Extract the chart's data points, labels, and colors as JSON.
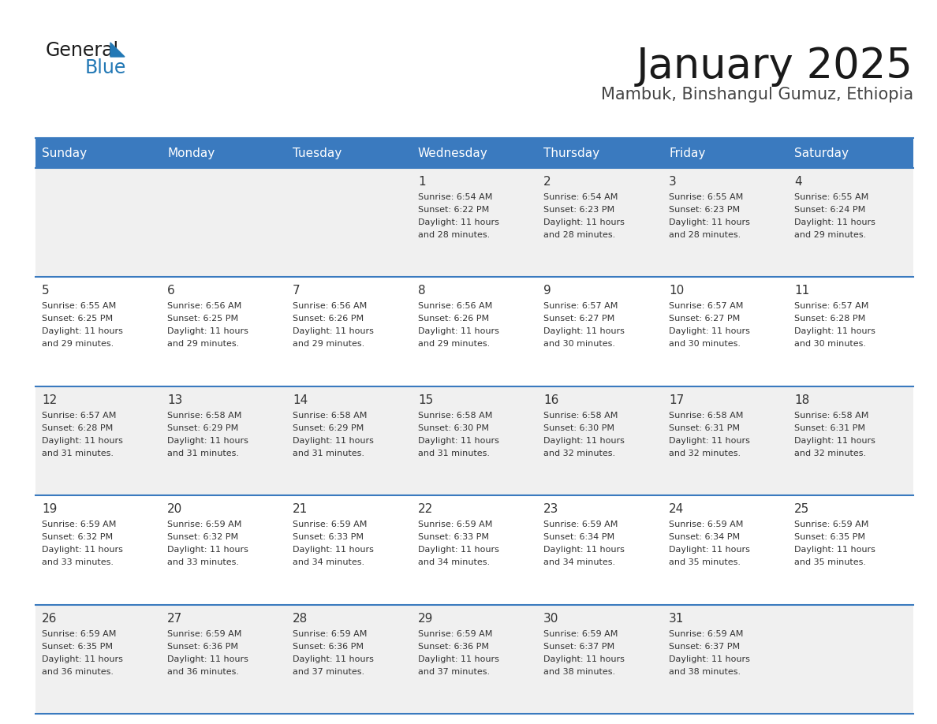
{
  "title": "January 2025",
  "subtitle": "Mambuk, Binshangul Gumuz, Ethiopia",
  "header_bg_color": "#3a7abf",
  "header_text_color": "#ffffff",
  "cell_bg_odd": "#f0f0f0",
  "cell_bg_even": "#ffffff",
  "divider_color": "#3a7abf",
  "text_color": "#333333",
  "day_headers": [
    "Sunday",
    "Monday",
    "Tuesday",
    "Wednesday",
    "Thursday",
    "Friday",
    "Saturday"
  ],
  "weeks": [
    [
      {
        "day": "",
        "sunrise": "",
        "sunset": "",
        "daylight": ""
      },
      {
        "day": "",
        "sunrise": "",
        "sunset": "",
        "daylight": ""
      },
      {
        "day": "",
        "sunrise": "",
        "sunset": "",
        "daylight": ""
      },
      {
        "day": "1",
        "sunrise": "Sunrise: 6:54 AM",
        "sunset": "Sunset: 6:22 PM",
        "daylight": "Daylight: 11 hours\nand 28 minutes."
      },
      {
        "day": "2",
        "sunrise": "Sunrise: 6:54 AM",
        "sunset": "Sunset: 6:23 PM",
        "daylight": "Daylight: 11 hours\nand 28 minutes."
      },
      {
        "day": "3",
        "sunrise": "Sunrise: 6:55 AM",
        "sunset": "Sunset: 6:23 PM",
        "daylight": "Daylight: 11 hours\nand 28 minutes."
      },
      {
        "day": "4",
        "sunrise": "Sunrise: 6:55 AM",
        "sunset": "Sunset: 6:24 PM",
        "daylight": "Daylight: 11 hours\nand 29 minutes."
      }
    ],
    [
      {
        "day": "5",
        "sunrise": "Sunrise: 6:55 AM",
        "sunset": "Sunset: 6:25 PM",
        "daylight": "Daylight: 11 hours\nand 29 minutes."
      },
      {
        "day": "6",
        "sunrise": "Sunrise: 6:56 AM",
        "sunset": "Sunset: 6:25 PM",
        "daylight": "Daylight: 11 hours\nand 29 minutes."
      },
      {
        "day": "7",
        "sunrise": "Sunrise: 6:56 AM",
        "sunset": "Sunset: 6:26 PM",
        "daylight": "Daylight: 11 hours\nand 29 minutes."
      },
      {
        "day": "8",
        "sunrise": "Sunrise: 6:56 AM",
        "sunset": "Sunset: 6:26 PM",
        "daylight": "Daylight: 11 hours\nand 29 minutes."
      },
      {
        "day": "9",
        "sunrise": "Sunrise: 6:57 AM",
        "sunset": "Sunset: 6:27 PM",
        "daylight": "Daylight: 11 hours\nand 30 minutes."
      },
      {
        "day": "10",
        "sunrise": "Sunrise: 6:57 AM",
        "sunset": "Sunset: 6:27 PM",
        "daylight": "Daylight: 11 hours\nand 30 minutes."
      },
      {
        "day": "11",
        "sunrise": "Sunrise: 6:57 AM",
        "sunset": "Sunset: 6:28 PM",
        "daylight": "Daylight: 11 hours\nand 30 minutes."
      }
    ],
    [
      {
        "day": "12",
        "sunrise": "Sunrise: 6:57 AM",
        "sunset": "Sunset: 6:28 PM",
        "daylight": "Daylight: 11 hours\nand 31 minutes."
      },
      {
        "day": "13",
        "sunrise": "Sunrise: 6:58 AM",
        "sunset": "Sunset: 6:29 PM",
        "daylight": "Daylight: 11 hours\nand 31 minutes."
      },
      {
        "day": "14",
        "sunrise": "Sunrise: 6:58 AM",
        "sunset": "Sunset: 6:29 PM",
        "daylight": "Daylight: 11 hours\nand 31 minutes."
      },
      {
        "day": "15",
        "sunrise": "Sunrise: 6:58 AM",
        "sunset": "Sunset: 6:30 PM",
        "daylight": "Daylight: 11 hours\nand 31 minutes."
      },
      {
        "day": "16",
        "sunrise": "Sunrise: 6:58 AM",
        "sunset": "Sunset: 6:30 PM",
        "daylight": "Daylight: 11 hours\nand 32 minutes."
      },
      {
        "day": "17",
        "sunrise": "Sunrise: 6:58 AM",
        "sunset": "Sunset: 6:31 PM",
        "daylight": "Daylight: 11 hours\nand 32 minutes."
      },
      {
        "day": "18",
        "sunrise": "Sunrise: 6:58 AM",
        "sunset": "Sunset: 6:31 PM",
        "daylight": "Daylight: 11 hours\nand 32 minutes."
      }
    ],
    [
      {
        "day": "19",
        "sunrise": "Sunrise: 6:59 AM",
        "sunset": "Sunset: 6:32 PM",
        "daylight": "Daylight: 11 hours\nand 33 minutes."
      },
      {
        "day": "20",
        "sunrise": "Sunrise: 6:59 AM",
        "sunset": "Sunset: 6:32 PM",
        "daylight": "Daylight: 11 hours\nand 33 minutes."
      },
      {
        "day": "21",
        "sunrise": "Sunrise: 6:59 AM",
        "sunset": "Sunset: 6:33 PM",
        "daylight": "Daylight: 11 hours\nand 34 minutes."
      },
      {
        "day": "22",
        "sunrise": "Sunrise: 6:59 AM",
        "sunset": "Sunset: 6:33 PM",
        "daylight": "Daylight: 11 hours\nand 34 minutes."
      },
      {
        "day": "23",
        "sunrise": "Sunrise: 6:59 AM",
        "sunset": "Sunset: 6:34 PM",
        "daylight": "Daylight: 11 hours\nand 34 minutes."
      },
      {
        "day": "24",
        "sunrise": "Sunrise: 6:59 AM",
        "sunset": "Sunset: 6:34 PM",
        "daylight": "Daylight: 11 hours\nand 35 minutes."
      },
      {
        "day": "25",
        "sunrise": "Sunrise: 6:59 AM",
        "sunset": "Sunset: 6:35 PM",
        "daylight": "Daylight: 11 hours\nand 35 minutes."
      }
    ],
    [
      {
        "day": "26",
        "sunrise": "Sunrise: 6:59 AM",
        "sunset": "Sunset: 6:35 PM",
        "daylight": "Daylight: 11 hours\nand 36 minutes."
      },
      {
        "day": "27",
        "sunrise": "Sunrise: 6:59 AM",
        "sunset": "Sunset: 6:36 PM",
        "daylight": "Daylight: 11 hours\nand 36 minutes."
      },
      {
        "day": "28",
        "sunrise": "Sunrise: 6:59 AM",
        "sunset": "Sunset: 6:36 PM",
        "daylight": "Daylight: 11 hours\nand 37 minutes."
      },
      {
        "day": "29",
        "sunrise": "Sunrise: 6:59 AM",
        "sunset": "Sunset: 6:36 PM",
        "daylight": "Daylight: 11 hours\nand 37 minutes."
      },
      {
        "day": "30",
        "sunrise": "Sunrise: 6:59 AM",
        "sunset": "Sunset: 6:37 PM",
        "daylight": "Daylight: 11 hours\nand 38 minutes."
      },
      {
        "day": "31",
        "sunrise": "Sunrise: 6:59 AM",
        "sunset": "Sunset: 6:37 PM",
        "daylight": "Daylight: 11 hours\nand 38 minutes."
      },
      {
        "day": "",
        "sunrise": "",
        "sunset": "",
        "daylight": ""
      }
    ]
  ],
  "logo_color_general": "#1a1a1a",
  "logo_color_blue": "#2278b5",
  "logo_triangle_color": "#2278b5",
  "title_fontsize": 38,
  "subtitle_fontsize": 15,
  "header_fontsize": 11,
  "day_num_fontsize": 11,
  "cell_text_fontsize": 8
}
